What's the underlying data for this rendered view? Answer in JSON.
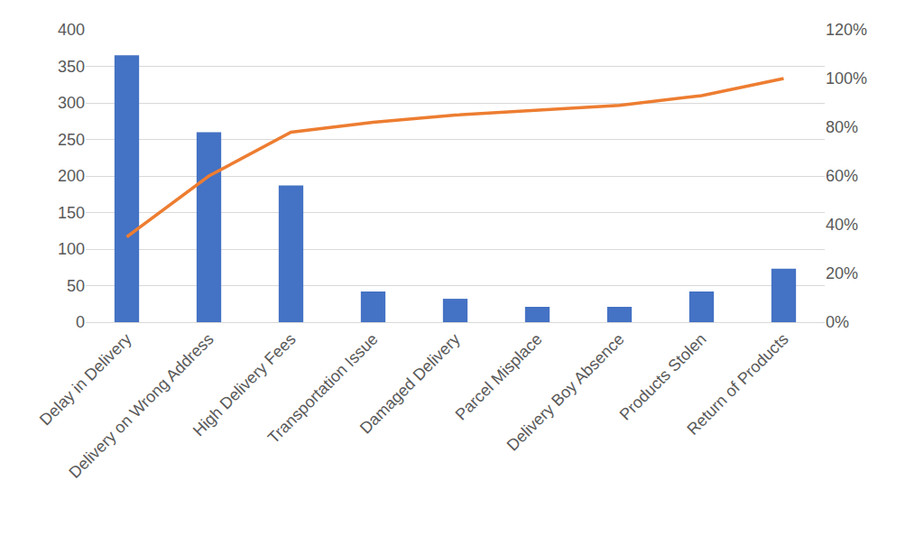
{
  "chart_data": {
    "type": "bar",
    "categories": [
      "Delay in Delivery",
      "Delivery on Wrong Address",
      "High Delivery Fees",
      "Transportation Issue",
      "Damaged Delivery",
      "Parcel Misplace",
      "Delivery Boy Absence",
      "Products Stolen",
      "Return of Products"
    ],
    "series": [
      {
        "type": "bar",
        "color": "#4472c4",
        "values": [
          365,
          260,
          187,
          42,
          32,
          21,
          21,
          42,
          73
        ]
      },
      {
        "type": "line",
        "color": "#ed7d31",
        "axis": "y2",
        "values": [
          35,
          60,
          78,
          82,
          85,
          87,
          89,
          93,
          100
        ]
      }
    ],
    "ylim": [
      0,
      400
    ],
    "yticks": [
      0,
      50,
      100,
      150,
      200,
      250,
      300,
      350,
      400
    ],
    "y2lim": [
      0,
      120
    ],
    "y2ticks": [
      {
        "value": 0,
        "label": "0%"
      },
      {
        "value": 20,
        "label": "20%"
      },
      {
        "value": 40,
        "label": "40%"
      },
      {
        "value": 60,
        "label": "60%"
      },
      {
        "value": 80,
        "label": "80%"
      },
      {
        "value": 100,
        "label": "100%"
      },
      {
        "value": 120,
        "label": "120%"
      }
    ],
    "grid": true
  }
}
